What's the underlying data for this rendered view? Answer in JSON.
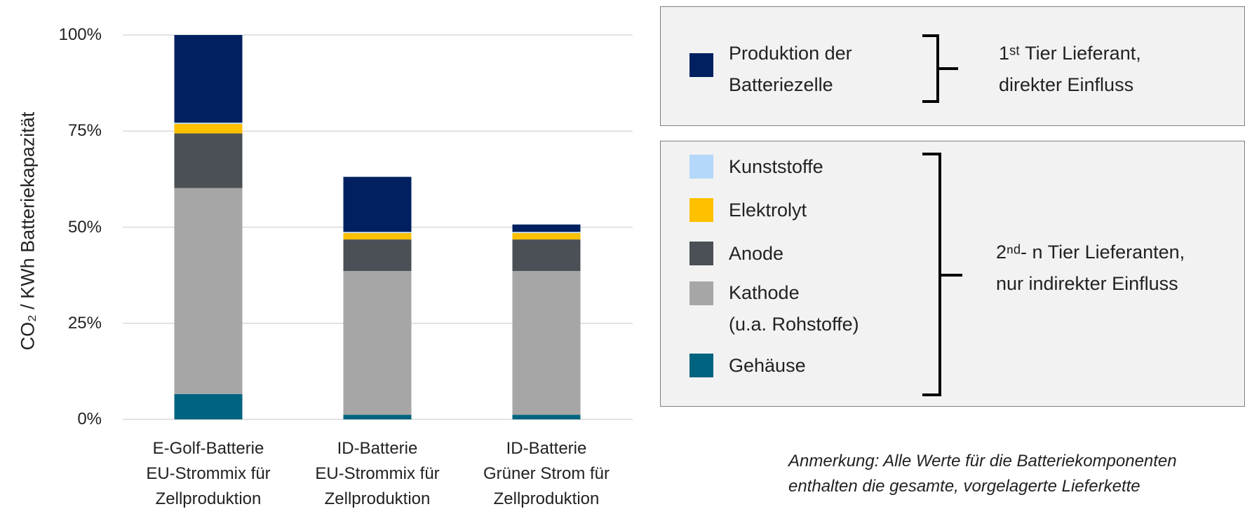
{
  "chart_data": {
    "type": "stacked_bar",
    "ylabel": "CO₂ / KWh Batteriekapazität",
    "categories": [
      "E-Golf-Batterie\nEU-Strommix für\nZellproduktion",
      "ID-Batterie\nEU-Strommix für\nZellproduktion",
      "ID-Batterie\nGrüner Strom für\nZellproduktion"
    ],
    "series": [
      {
        "name": "Gehäuse",
        "color": "#00637f",
        "values": [
          6.6,
          1.2,
          1.2
        ]
      },
      {
        "name": "Kathode\n(u.a. Rohstoffe)",
        "color": "#a6a6a6",
        "values": [
          53.6,
          37.4,
          37.4
        ]
      },
      {
        "name": "Anode",
        "color": "#4a5055",
        "values": [
          14.2,
          8.2,
          8.2
        ]
      },
      {
        "name": "Elektrolyt",
        "color": "#ffc000",
        "values": [
          2.5,
          1.7,
          1.7
        ]
      },
      {
        "name": "Kunststoffe",
        "color": "#b4d7fa",
        "values": [
          0.3,
          0.3,
          0.3
        ]
      },
      {
        "name": "Produktion der\nBatteriezelle",
        "color": "#002060",
        "values": [
          22.8,
          14.3,
          1.9
        ]
      }
    ],
    "ylim": [
      0,
      100
    ],
    "yticks": [
      {
        "value": 0,
        "label": "0%"
      },
      {
        "value": 25,
        "label": "25%"
      },
      {
        "value": 50,
        "label": "50%"
      },
      {
        "value": 75,
        "label": "75%"
      },
      {
        "value": 100,
        "label": "100%"
      }
    ],
    "grid": true,
    "groups": [
      "1ˢᵗ Tier Lieferant,\ndirekter Einfluss",
      "2ⁿᵈ- n Tier Lieferanten,\nnur indirekter Einfluss"
    ],
    "annotation": "Anmerkung: Alle Werte für die Batteriekomponenten\nenthalten die gesamte, vorgelagerte Lieferkette"
  }
}
